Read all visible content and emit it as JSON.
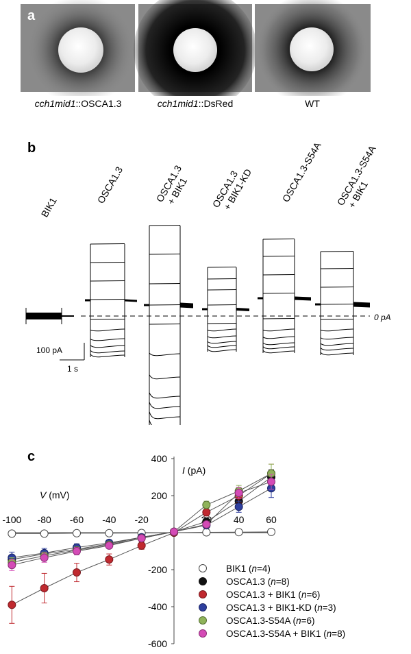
{
  "panel_a": {
    "letter": "a",
    "captions": [
      {
        "italic": "cch1mid1",
        "plain": "::OSCA1.3"
      },
      {
        "italic": "cch1mid1",
        "plain": "::DsRed"
      },
      {
        "italic": "",
        "plain": "WT"
      }
    ],
    "halo_strength": [
      0.45,
      1.0,
      0.6
    ]
  },
  "panel_b": {
    "letter": "b",
    "trace_labels": [
      {
        "line1": "BIK1",
        "line2": ""
      },
      {
        "line1": "OSCA1.3",
        "line2": ""
      },
      {
        "line1": "OSCA1.3",
        "line2": "+ BIK1"
      },
      {
        "line1": "OSCA1.3",
        "line2": "+ BIK1-KD"
      },
      {
        "line1": "OSCA1.3-S54A",
        "line2": ""
      },
      {
        "line1": "OSCA1.3-S54A",
        "line2": "+ BIK1"
      }
    ],
    "zero_label": "0 pA",
    "scalebar_current": "100 pA",
    "scalebar_time": "1 s"
  },
  "panel_c": {
    "letter": "c",
    "chart_data": {
      "type": "scatter",
      "title": "",
      "xlabel": "V (mV)",
      "ylabel": "I (pA)",
      "xlim": [
        -100,
        60
      ],
      "ylim": [
        -600,
        400
      ],
      "x": [
        -100,
        -80,
        -60,
        -40,
        -20,
        0,
        20,
        40,
        60
      ],
      "x_ticks": [
        -100,
        -80,
        -60,
        -40,
        -20,
        20,
        40,
        60
      ],
      "y_ticks": [
        400,
        200,
        -200,
        -400,
        -600
      ],
      "series": [
        {
          "name": "BIK1",
          "n": "n=4",
          "color": "#ffffff",
          "stroke": "#444444",
          "values": [
            -5,
            -5,
            -3,
            -3,
            -2,
            0,
            2,
            3,
            4
          ],
          "errors": [
            0,
            0,
            0,
            0,
            0,
            0,
            0,
            0,
            0
          ]
        },
        {
          "name": "OSCA1.3",
          "n": "n=8",
          "color": "#111111",
          "stroke": "#111111",
          "values": [
            -145,
            -115,
            -90,
            -60,
            -25,
            5,
            60,
            170,
            300
          ],
          "errors": [
            25,
            20,
            18,
            15,
            10,
            5,
            15,
            30,
            40
          ]
        },
        {
          "name": "OSCA1.3 + BIK1",
          "n": "n=6",
          "color": "#c0292f",
          "stroke": "#7a1a1e",
          "values": [
            -390,
            -300,
            -215,
            -145,
            -70,
            0,
            110,
            200,
            320
          ],
          "errors": [
            100,
            80,
            50,
            30,
            20,
            5,
            20,
            40,
            50
          ]
        },
        {
          "name": "OSCA1.3 + BIK1-KD",
          "n": "n=3",
          "color": "#2e3f9e",
          "stroke": "#1a2466",
          "values": [
            -135,
            -110,
            -80,
            -55,
            -25,
            5,
            40,
            140,
            240
          ],
          "errors": [
            30,
            25,
            20,
            15,
            10,
            5,
            10,
            30,
            50
          ]
        },
        {
          "name": "OSCA1.3-S54A",
          "n": "n=6",
          "color": "#8fb35a",
          "stroke": "#566f33",
          "values": [
            -160,
            -125,
            -95,
            -65,
            -30,
            5,
            150,
            225,
            320
          ],
          "errors": [
            25,
            20,
            18,
            15,
            10,
            5,
            20,
            30,
            50
          ]
        },
        {
          "name": "OSCA1.3-S54A + BIK1",
          "n": "n=8",
          "color": "#d44bb6",
          "stroke": "#8a2f76",
          "values": [
            -175,
            -135,
            -100,
            -70,
            -30,
            5,
            45,
            215,
            275
          ],
          "errors": [
            30,
            25,
            20,
            15,
            10,
            5,
            15,
            30,
            40
          ]
        }
      ]
    }
  }
}
